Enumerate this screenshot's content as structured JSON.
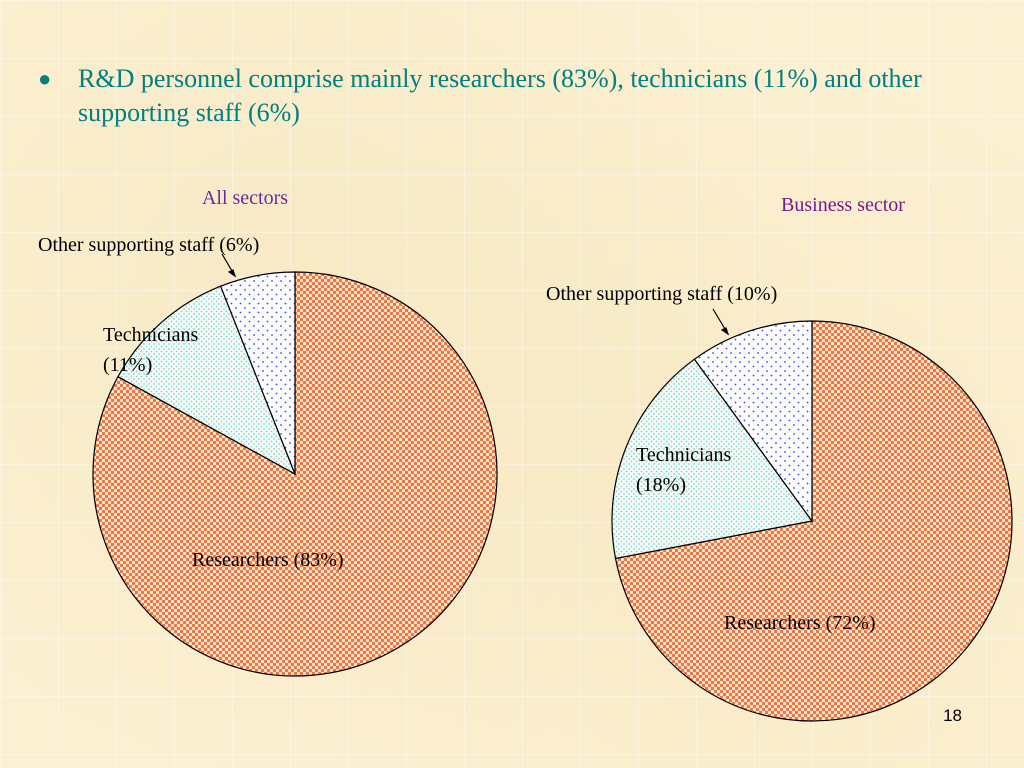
{
  "bullet": {
    "text": "R&D personnel comprise mainly researchers (83%), technicians (11%) and other supporting staff (6%)"
  },
  "chart_data": [
    {
      "type": "pie",
      "title": "All sectors",
      "categories": [
        "Researchers",
        "Technicians",
        "Other supporting staff"
      ],
      "values": [
        83,
        11,
        6
      ],
      "labels": [
        "Researchers (83%)",
        "Technicians",
        "(11%)",
        "Other supporting staff (6%)"
      ],
      "legend": "none"
    },
    {
      "type": "pie",
      "title": "Business sector",
      "categories": [
        "Researchers",
        "Technicians",
        "Other supporting staff"
      ],
      "values": [
        72,
        18,
        10
      ],
      "labels": [
        "Researchers (72%)",
        "Technicians",
        "(18%)",
        "Other supporting staff (10%)"
      ],
      "legend": "none"
    }
  ],
  "colors": {
    "bullet_text": "#008080",
    "title_all": "#6a2ca0",
    "title_business": "#7a1a8a",
    "researchers": "#e8784a",
    "technicians": "#8ccfcf",
    "other": "#3b4bd8"
  },
  "page_number": "18"
}
